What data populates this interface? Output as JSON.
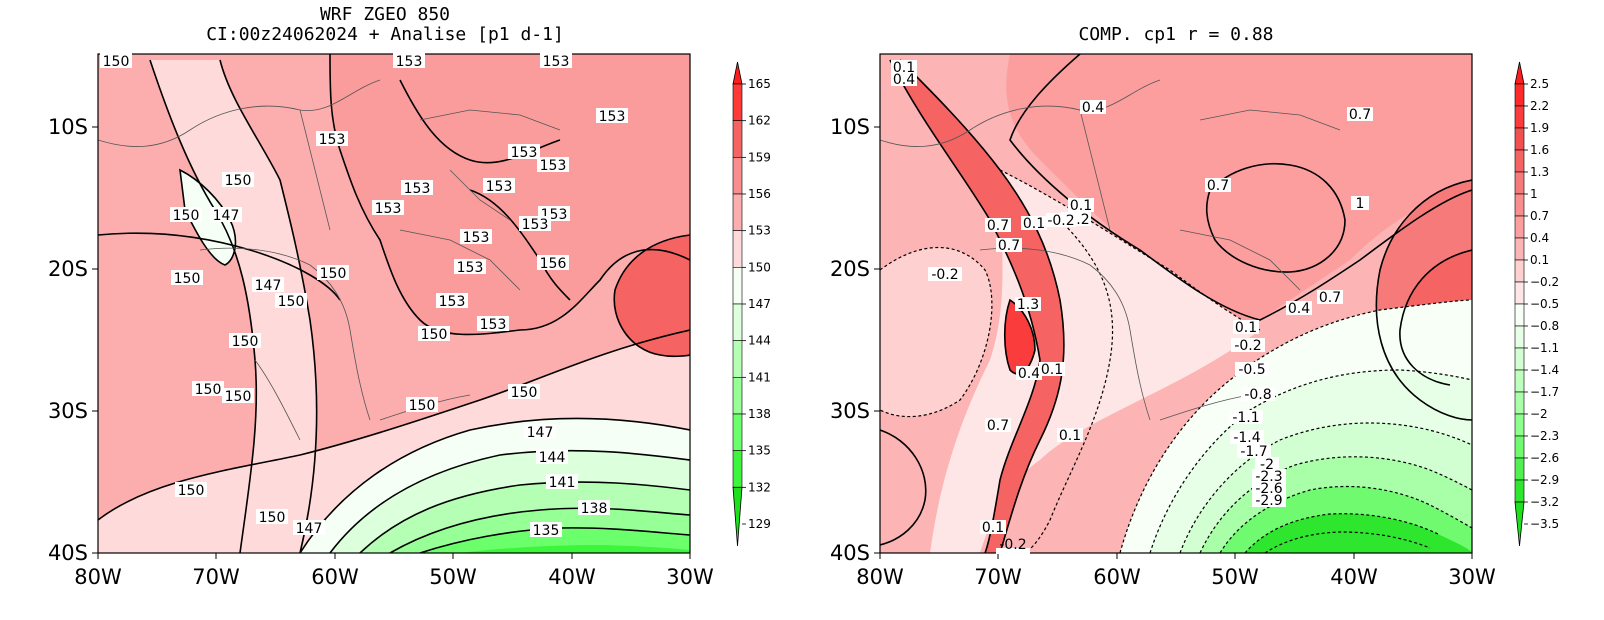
{
  "panel_left": {
    "title_line1": "WRF ZGEO 850",
    "title_line2": "CI:00z24062024 + Analise  [p1 d-1]",
    "x_ticks": [
      "80W",
      "70W",
      "60W",
      "50W",
      "40W",
      "30W"
    ],
    "y_ticks": [
      "10S",
      "20S",
      "30S",
      "40S"
    ],
    "colorbar_labels": [
      "165",
      "162",
      "159",
      "156",
      "153",
      "150",
      "147",
      "144",
      "141",
      "138",
      "135",
      "132",
      "129"
    ],
    "colorbar_colors": [
      "#ff1e1e",
      "#ff3838",
      "#f56363",
      "#fa8e8e",
      "#fcadad",
      "#ffdada",
      "#f5fff5",
      "#dcffdc",
      "#b5ffb5",
      "#96ff96",
      "#6cff6c",
      "#3cf53c",
      "#1ee11e"
    ],
    "contour_labels": [
      {
        "text": "150"
      },
      {
        "text": "153"
      },
      {
        "text": "153"
      },
      {
        "text": "153"
      },
      {
        "text": "153"
      },
      {
        "text": "153"
      },
      {
        "text": "153"
      },
      {
        "text": "153"
      },
      {
        "text": "153"
      },
      {
        "text": "153"
      },
      {
        "text": "150"
      },
      {
        "text": "150"
      },
      {
        "text": "147"
      },
      {
        "text": "153"
      },
      {
        "text": "153"
      },
      {
        "text": "153"
      },
      {
        "text": "150"
      },
      {
        "text": "147"
      },
      {
        "text": "150"
      },
      {
        "text": "150"
      },
      {
        "text": "153"
      },
      {
        "text": "156"
      },
      {
        "text": "153"
      },
      {
        "text": "153"
      },
      {
        "text": "150"
      },
      {
        "text": "150"
      },
      {
        "text": "150"
      },
      {
        "text": "150"
      },
      {
        "text": "150"
      },
      {
        "text": "150"
      },
      {
        "text": "147"
      },
      {
        "text": "144"
      },
      {
        "text": "141"
      },
      {
        "text": "138"
      },
      {
        "text": "135"
      },
      {
        "text": "150"
      },
      {
        "text": "150"
      },
      {
        "text": "147"
      }
    ]
  },
  "panel_right": {
    "title": "COMP. cp1   r =  0.88",
    "x_ticks": [
      "80W",
      "70W",
      "60W",
      "50W",
      "40W",
      "30W"
    ],
    "y_ticks": [
      "10S",
      "20S",
      "30S",
      "40S"
    ],
    "colorbar_labels": [
      "2.5",
      "2.2",
      "1.9",
      "1.6",
      "1.3",
      "1",
      "0.7",
      "0.4",
      "0.1",
      "−0.2",
      "−0.5",
      "−0.8",
      "−1.1",
      "−1.4",
      "−1.7",
      "−2",
      "−2.3",
      "−2.6",
      "−2.9",
      "−3.2",
      "−3.5"
    ],
    "colorbar_colors": [
      "#ff1e1e",
      "#ff2a2a",
      "#fa3c3c",
      "#f55050",
      "#f56363",
      "#f77a7a",
      "#fa8e8e",
      "#fc9e9e",
      "#fcb4b4",
      "#ffd0d0",
      "#ffe6e6",
      "#f7fff7",
      "#e6ffe6",
      "#d2ffd2",
      "#beffbe",
      "#a8ffa8",
      "#8cff8c",
      "#70fa70",
      "#50f050",
      "#2ee62e",
      "#1ee11e"
    ],
    "contour_labels": [
      {
        "text": "0.1"
      },
      {
        "text": "0.4"
      },
      {
        "text": "0.4"
      },
      {
        "text": "0.7"
      },
      {
        "text": "0.7"
      },
      {
        "text": "1"
      },
      {
        "text": "0.1"
      },
      {
        "text": "-0.2"
      },
      {
        "text": "0.7"
      },
      {
        "text": "0.1"
      },
      {
        "text": "-0.2"
      },
      {
        "text": "0.7"
      },
      {
        "text": "-0.2"
      },
      {
        "text": "1.3"
      },
      {
        "text": "0.4"
      },
      {
        "text": "0.1"
      },
      {
        "text": "0.7"
      },
      {
        "text": "0.1"
      },
      {
        "text": "0.4"
      },
      {
        "text": "0.7"
      },
      {
        "text": "0.1"
      },
      {
        "text": "-0.2"
      },
      {
        "text": "-0.5"
      },
      {
        "text": "-0.8"
      },
      {
        "text": "-1.1"
      },
      {
        "text": "-1.4"
      },
      {
        "text": "-1.7"
      },
      {
        "text": "-2"
      },
      {
        "text": "-2.3"
      },
      {
        "text": "-2.6"
      },
      {
        "text": "-2.9"
      },
      {
        "text": "0.1"
      },
      {
        "text": "-0.2"
      }
    ]
  }
}
